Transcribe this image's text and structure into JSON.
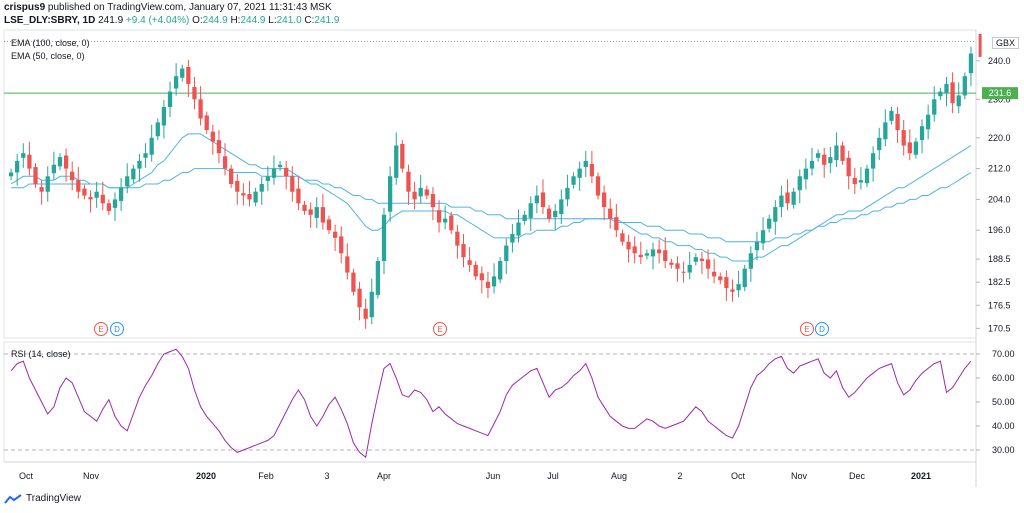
{
  "header": {
    "publisher": "crispus9",
    "published_text": "published on TradingView.com, January 07, 2021 11:31:43 MSK",
    "symbol": "LSE_DLY:SBRY, 1D",
    "last": "241.9",
    "change": "+9.4 (+4.04%)",
    "o_label": "O:",
    "o": "244.9",
    "h_label": "H:",
    "h": "244.9",
    "l_label": "L:",
    "l": "241.0",
    "c_label": "C:",
    "c": "241.9"
  },
  "indicators": {
    "ema100": "EMA (100, close, 0)",
    "ema50": "EMA (50, close, 0)",
    "rsi": "RSI (14, close)"
  },
  "currency": "GBX",
  "price_badge": "231.6",
  "footer": {
    "brand": "TradingView"
  },
  "colors": {
    "up": "#26a69a",
    "down": "#ef5350",
    "ema": "#4fb4e0",
    "rsi": "#9c27b0",
    "hline": "#4caf50"
  },
  "events": [
    {
      "label": "E",
      "color": "#ef5350"
    },
    {
      "label": "D",
      "color": "#2196f3"
    },
    {
      "label": "E",
      "color": "#ef5350"
    },
    {
      "label": "E",
      "color": "#ef5350"
    },
    {
      "label": "D",
      "color": "#2196f3"
    }
  ],
  "chart_data": [
    {
      "type": "candlestick",
      "title": "LSE_DLY:SBRY, 1D",
      "ylabel": "GBX",
      "x_ticks": [
        "Oct",
        "Nov",
        "2020",
        "Feb",
        "3",
        "Apr",
        "Jun",
        "Jul",
        "Aug",
        "2",
        "Oct",
        "Nov",
        "Dec",
        "2021"
      ],
      "y_ticks": [
        170.5,
        176.5,
        182.5,
        188.5,
        196.0,
        204.0,
        212.0,
        220.0,
        230.0,
        240.0
      ],
      "ylim": [
        168,
        248
      ],
      "horizontal_line": 231.6,
      "close_series": [
        211,
        214,
        216,
        212,
        208,
        206,
        210,
        213,
        215,
        212,
        209,
        206,
        205,
        204,
        206,
        203,
        201,
        204,
        207,
        210,
        212,
        214,
        216,
        220,
        224,
        228,
        232,
        236,
        238,
        234,
        230,
        225,
        222,
        219,
        216,
        212,
        208,
        206,
        205,
        204,
        206,
        208,
        210,
        212,
        213,
        210,
        206,
        203,
        201,
        200,
        202,
        198,
        196,
        194,
        190,
        185,
        180,
        176,
        173,
        180,
        188,
        200,
        210,
        218,
        212,
        206,
        204,
        207,
        205,
        202,
        198,
        199,
        196,
        192,
        189,
        187,
        184,
        183,
        181,
        184,
        188,
        192,
        195,
        198,
        200,
        203,
        205,
        202,
        199,
        201,
        204,
        207,
        210,
        212,
        214,
        210,
        205,
        202,
        199,
        196,
        193,
        191,
        190,
        189,
        190,
        191,
        190,
        188,
        187,
        186,
        185,
        187,
        189,
        188,
        186,
        184,
        183,
        181,
        180,
        182,
        186,
        190,
        193,
        196,
        199,
        202,
        205,
        203,
        206,
        210,
        212,
        214,
        216,
        213,
        215,
        218,
        214,
        210,
        208,
        209,
        212,
        216,
        220,
        224,
        227,
        222,
        218,
        216,
        219,
        223,
        226,
        230,
        232,
        234,
        229,
        231,
        236,
        241.9
      ],
      "ema50_series": [
        208,
        209,
        210,
        210,
        210,
        209,
        209,
        209,
        210,
        210,
        210,
        209,
        209,
        208,
        208,
        208,
        207,
        207,
        207,
        207,
        208,
        209,
        210,
        211,
        213,
        214,
        216,
        218,
        220,
        221,
        221,
        221,
        220,
        219,
        218,
        217,
        216,
        215,
        214,
        213,
        213,
        212,
        212,
        212,
        212,
        212,
        211,
        210,
        209,
        208,
        208,
        207,
        206,
        205,
        204,
        203,
        201,
        199,
        197,
        196,
        196,
        197,
        199,
        200,
        201,
        201,
        201,
        201,
        201,
        201,
        201,
        201,
        200,
        200,
        199,
        198,
        197,
        196,
        195,
        194,
        194,
        194,
        194,
        194,
        195,
        195,
        196,
        196,
        196,
        196,
        197,
        197,
        198,
        198,
        199,
        199,
        199,
        199,
        199,
        198,
        198,
        197,
        196,
        195,
        195,
        194,
        194,
        193,
        193,
        192,
        192,
        192,
        191,
        191,
        190,
        190,
        189,
        189,
        188,
        188,
        188,
        188,
        189,
        189,
        190,
        191,
        192,
        192,
        193,
        194,
        195,
        196,
        197,
        198,
        199,
        200,
        200,
        201,
        201,
        201,
        202,
        203,
        204,
        205,
        206,
        207,
        207,
        208,
        209,
        210,
        211,
        212,
        213,
        214,
        215,
        216,
        217,
        218
      ],
      "ema100_series": [
        207,
        207,
        207,
        208,
        208,
        208,
        208,
        208,
        208,
        208,
        208,
        208,
        208,
        208,
        208,
        208,
        207,
        207,
        207,
        207,
        207,
        207,
        208,
        208,
        208,
        209,
        209,
        210,
        211,
        211,
        212,
        212,
        212,
        212,
        212,
        212,
        211,
        211,
        211,
        211,
        211,
        210,
        210,
        210,
        210,
        210,
        210,
        210,
        209,
        209,
        209,
        208,
        208,
        207,
        207,
        206,
        205,
        205,
        204,
        204,
        203,
        203,
        203,
        203,
        203,
        203,
        203,
        203,
        203,
        203,
        203,
        203,
        202,
        202,
        202,
        202,
        201,
        201,
        200,
        200,
        200,
        199,
        199,
        199,
        199,
        199,
        199,
        199,
        199,
        199,
        199,
        199,
        199,
        199,
        199,
        199,
        199,
        199,
        199,
        199,
        198,
        198,
        198,
        198,
        197,
        197,
        197,
        196,
        196,
        196,
        196,
        195,
        195,
        195,
        194,
        194,
        194,
        193,
        193,
        193,
        193,
        193,
        193,
        193,
        193,
        194,
        194,
        194,
        195,
        195,
        196,
        196,
        197,
        197,
        198,
        198,
        199,
        199,
        199,
        200,
        200,
        201,
        201,
        202,
        202,
        203,
        203,
        204,
        204,
        205,
        205,
        206,
        207,
        207,
        208,
        209,
        210,
        211
      ],
      "ohlc_last": {
        "open": 244.9,
        "high": 244.9,
        "low": 241.0,
        "close": 241.9
      }
    },
    {
      "type": "line",
      "title": "RSI (14, close)",
      "y_ticks": [
        30.0,
        40.0,
        50.0,
        60.0,
        70.0
      ],
      "ylim": [
        25,
        75
      ],
      "reference_lines": [
        70,
        30
      ],
      "series": [
        {
          "name": "RSI (14, close)",
          "values": [
            63,
            66,
            67,
            60,
            55,
            50,
            45,
            48,
            56,
            60,
            58,
            52,
            46,
            44,
            42,
            47,
            51,
            44,
            40,
            38,
            45,
            52,
            57,
            61,
            66,
            70,
            71,
            72,
            69,
            64,
            55,
            48,
            44,
            41,
            38,
            34,
            31,
            29,
            30,
            31,
            32,
            33,
            34,
            36,
            41,
            46,
            51,
            55,
            51,
            44,
            40,
            44,
            49,
            52,
            47,
            41,
            33,
            29,
            27,
            41,
            53,
            64,
            66,
            60,
            53,
            52,
            55,
            54,
            51,
            46,
            48,
            45,
            43,
            41,
            40,
            39,
            38,
            37,
            36,
            41,
            46,
            53,
            57,
            59,
            61,
            63,
            64,
            58,
            52,
            55,
            56,
            58,
            61,
            63,
            66,
            60,
            52,
            48,
            44,
            42,
            40,
            39,
            39,
            41,
            43,
            42,
            40,
            39,
            40,
            41,
            42,
            45,
            48,
            46,
            42,
            40,
            38,
            36,
            35,
            40,
            48,
            56,
            61,
            63,
            66,
            68,
            69,
            64,
            62,
            65,
            66,
            67,
            68,
            62,
            60,
            63,
            56,
            52,
            54,
            57,
            60,
            62,
            64,
            65,
            66,
            58,
            53,
            55,
            59,
            62,
            64,
            66,
            67,
            54,
            56,
            60,
            64,
            67
          ]
        }
      ]
    }
  ]
}
